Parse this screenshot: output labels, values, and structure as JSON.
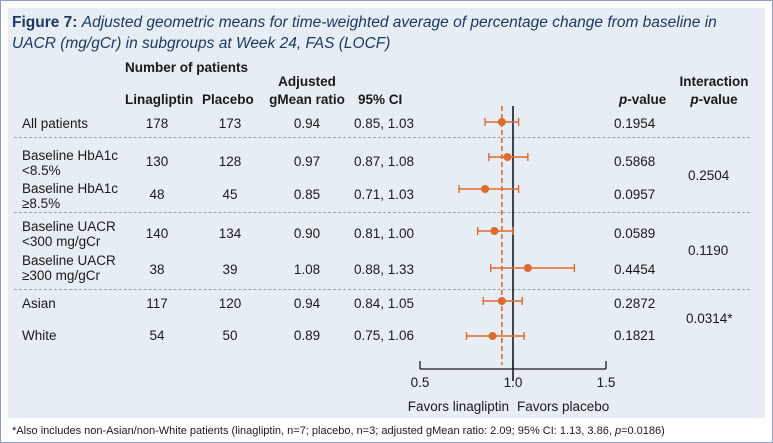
{
  "title": {
    "figure": "Figure 7:",
    "text": "Adjusted geometric means for time-weighted average of percentage change from baseline in UACR (mg/gCr) in subgroups at Week 24, FAS (LOCF)"
  },
  "headers": {
    "num_patients": "Number of patients",
    "linagliptin": "Linagliptin",
    "placebo": "Placebo",
    "ratio_line1": "Adjusted",
    "ratio_line2": "gMean ratio",
    "ci": "95% CI",
    "pvalue_p": "p",
    "pvalue_rest": "-value",
    "interaction_line1": "Interaction",
    "interaction_p": "p",
    "interaction_rest": "-value"
  },
  "rows": [
    {
      "label1": "All patients",
      "label2": "",
      "lina": "178",
      "plac": "173",
      "ratio": "0.94",
      "ci": "0.85, 1.03",
      "p": "0.1954"
    },
    {
      "label1": "Baseline HbA1c",
      "label2": "<8.5%",
      "lina": "130",
      "plac": "128",
      "ratio": "0.97",
      "ci": "0.87, 1.08",
      "p": "0.5868"
    },
    {
      "label1": "Baseline HbA1c",
      "label2": "≥8.5%",
      "lina": "48",
      "plac": "45",
      "ratio": "0.85",
      "ci": "0.71, 1.03",
      "p": "0.0957"
    },
    {
      "label1": "Baseline UACR",
      "label2": "<300 mg/gCr",
      "lina": "140",
      "plac": "134",
      "ratio": "0.90",
      "ci": "0.81, 1.00",
      "p": "0.0589"
    },
    {
      "label1": "Baseline UACR",
      "label2": "≥300 mg/gCr",
      "lina": "38",
      "plac": "39",
      "ratio": "1.08",
      "ci": "0.88, 1.33",
      "p": "0.4454"
    },
    {
      "label1": "Asian",
      "label2": "",
      "lina": "117",
      "plac": "120",
      "ratio": "0.94",
      "ci": "0.84, 1.05",
      "p": "0.2872"
    },
    {
      "label1": "White",
      "label2": "",
      "lina": "54",
      "plac": "50",
      "ratio": "0.89",
      "ci": "0.75, 1.06",
      "p": "0.1821"
    }
  ],
  "interaction": [
    "0.2504",
    "0.1190",
    "0.0314*"
  ],
  "footnote": {
    "before": "*Also includes non-Asian/non-White patients (linagliptin, n=7; placebo, n=3; adjusted gMean ratio: 2.09; 95% CI: 1.13, 3.86, ",
    "p": "p",
    "after": "=0.0186)"
  },
  "colors": {
    "title": "#1f3864",
    "marker": "#e06a2c",
    "reference_line": "#e06a2c",
    "axis": "#1a1a1a",
    "panel": "#e6edf5",
    "separator": "#9aa3ad"
  },
  "chart_data": {
    "type": "scatter",
    "subtype": "forest",
    "title": "",
    "xlabel": "",
    "ylabel": "",
    "x_ticks": [
      "0.5",
      "1.0",
      "1.5"
    ],
    "xlim": [
      0.5,
      1.5
    ],
    "null_value": 1.0,
    "overall_estimate": 0.94,
    "left_label": "Favors linagliptin",
    "right_label": "Favors placebo",
    "categories": [
      "All patients",
      "Baseline HbA1c <8.5%",
      "Baseline HbA1c ≥8.5%",
      "Baseline UACR <300 mg/gCr",
      "Baseline UACR ≥300 mg/gCr",
      "Asian",
      "White"
    ],
    "estimates": [
      0.94,
      0.97,
      0.85,
      0.9,
      1.08,
      0.94,
      0.89
    ],
    "ci_low": [
      0.85,
      0.87,
      0.71,
      0.81,
      0.88,
      0.84,
      0.75
    ],
    "ci_high": [
      1.03,
      1.08,
      1.03,
      1.0,
      1.33,
      1.05,
      1.06
    ]
  }
}
